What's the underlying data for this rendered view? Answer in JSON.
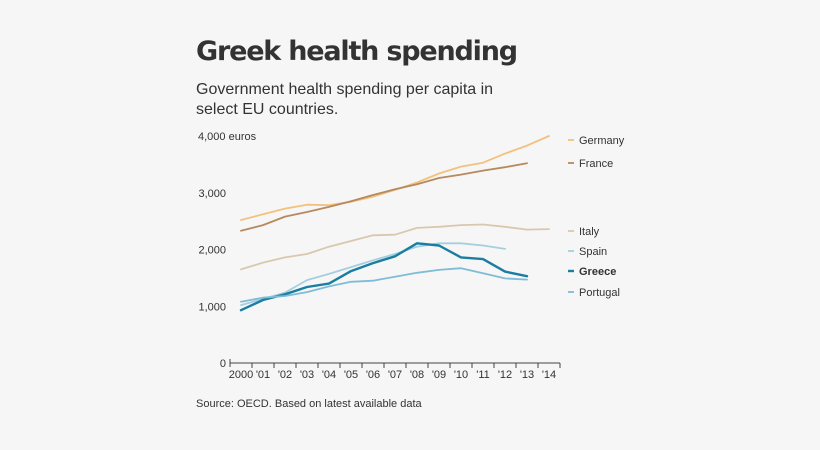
{
  "header": {
    "title": "Greek health spending",
    "subtitle": "Government health spending per capita in select EU countries."
  },
  "footer": {
    "source": "Source: OECD. Based on latest available data"
  },
  "chart_data": {
    "type": "line",
    "title": "Greek health spending",
    "subtitle": "Government health spending per capita in select EU countries.",
    "xlabel": "",
    "ylabel": "",
    "x": [
      2000,
      2001,
      2002,
      2003,
      2004,
      2005,
      2006,
      2007,
      2008,
      2009,
      2010,
      2011,
      2012,
      2013,
      2014
    ],
    "x_tick_labels": [
      "2000",
      "'01",
      "'02",
      "'03",
      "'04",
      "'05",
      "'06",
      "'07",
      "'08",
      "'09",
      "'10",
      "'11",
      "'12",
      "'13",
      "'14"
    ],
    "y_ticks": [
      0,
      1000,
      2000,
      3000,
      4000
    ],
    "y_tick_labels": [
      "0",
      "1,000",
      "2,000",
      "3,000",
      "4,000 euros"
    ],
    "ylim": [
      0,
      4000
    ],
    "xlim": [
      2000,
      2014
    ],
    "grid": false,
    "legend_placement": "right (labels at line ends)",
    "series": [
      {
        "name": "Germany",
        "color": "#f2c27d",
        "bold": false,
        "values": [
          2520,
          2620,
          2720,
          2790,
          2780,
          2840,
          2930,
          3050,
          3180,
          3340,
          3460,
          3530,
          3690,
          3830,
          4000
        ]
      },
      {
        "name": "France",
        "color": "#b6895e",
        "bold": false,
        "values": [
          2330,
          2430,
          2580,
          2660,
          2750,
          2850,
          2960,
          3060,
          3150,
          3260,
          3320,
          3390,
          3450,
          3520,
          null
        ]
      },
      {
        "name": "Italy",
        "color": "#d9c8ae",
        "bold": false,
        "values": [
          1650,
          1770,
          1860,
          1920,
          2050,
          2150,
          2250,
          2260,
          2380,
          2400,
          2430,
          2440,
          2400,
          2350,
          2360
        ]
      },
      {
        "name": "Spain",
        "color": "#a5cfe0",
        "bold": false,
        "values": [
          1020,
          1130,
          1240,
          1460,
          1570,
          1690,
          1810,
          1920,
          2050,
          2110,
          2110,
          2070,
          2010,
          null,
          null
        ]
      },
      {
        "name": "Greece",
        "color": "#1b7ea0",
        "bold": true,
        "values": [
          930,
          1110,
          1210,
          1340,
          1400,
          1620,
          1760,
          1880,
          2110,
          2070,
          1860,
          1830,
          1610,
          1530,
          null
        ]
      },
      {
        "name": "Portugal",
        "color": "#7fbcd8",
        "bold": false,
        "values": [
          1080,
          1150,
          1180,
          1250,
          1350,
          1430,
          1450,
          1520,
          1590,
          1640,
          1670,
          1580,
          1490,
          1470,
          null
        ]
      }
    ]
  }
}
